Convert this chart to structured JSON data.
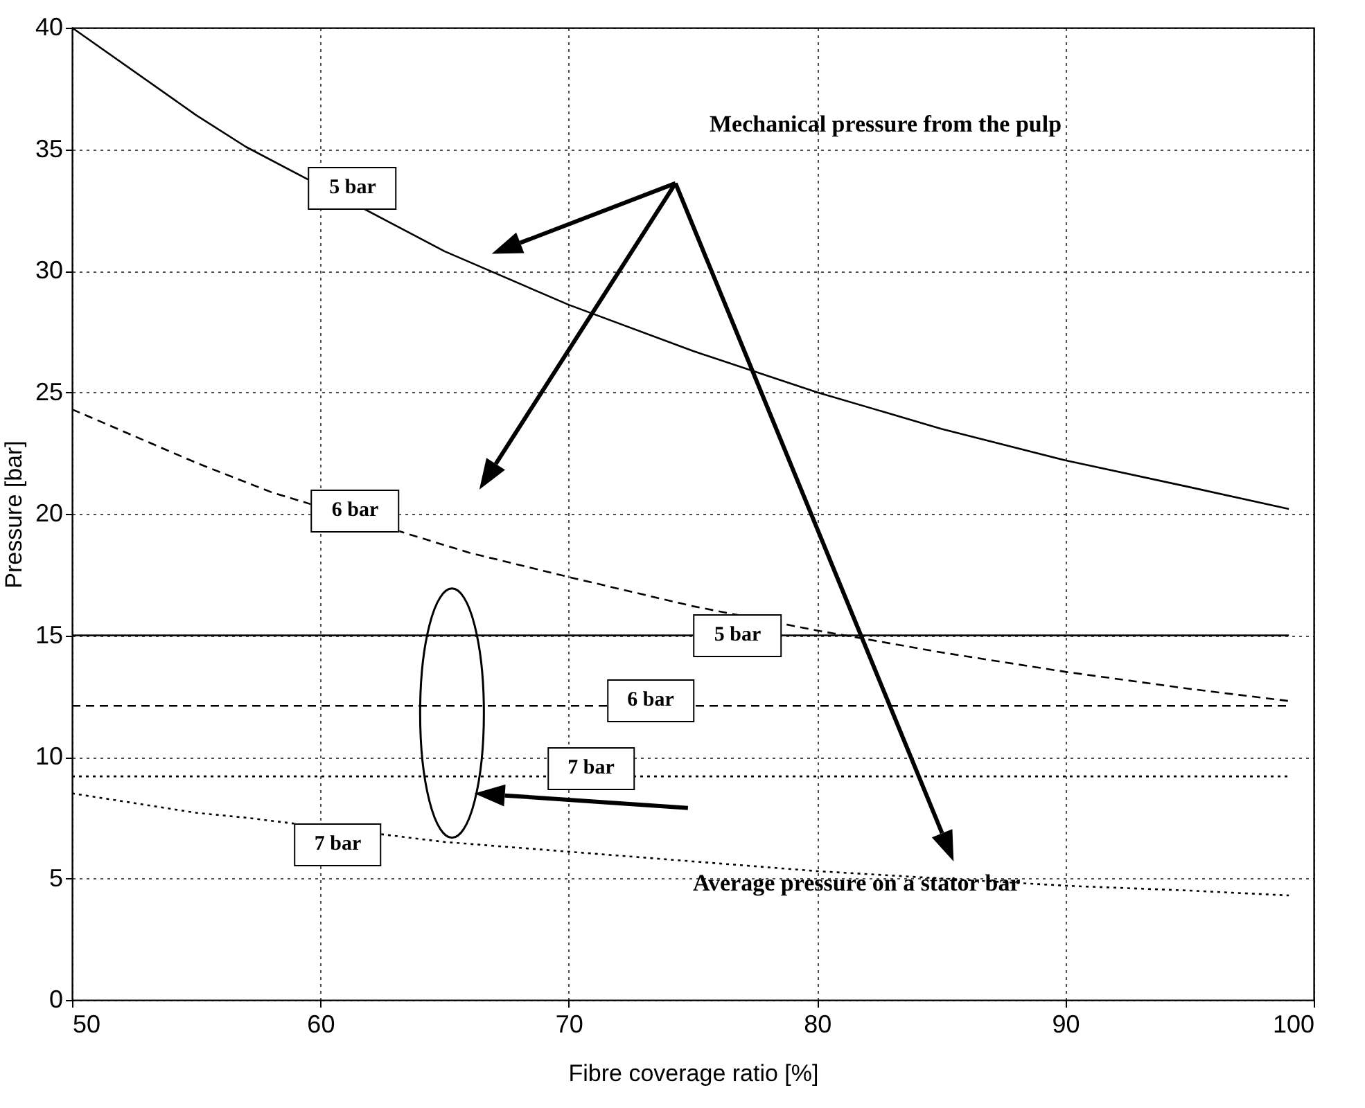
{
  "chart_data": {
    "type": "line",
    "xlabel": "Fibre coverage ratio [%]",
    "ylabel": "Pressure [bar]",
    "xlim": [
      50,
      100
    ],
    "ylim": [
      0,
      40
    ],
    "xticks": [
      50,
      60,
      70,
      80,
      90,
      100
    ],
    "yticks": [
      0,
      5,
      10,
      15,
      20,
      25,
      30,
      35,
      40
    ],
    "grid": true,
    "marker": "none",
    "annotations": [
      "Mechanical pressure from the pulp",
      "Average pressure on a stator bar"
    ],
    "series": [
      {
        "name": "5 bar",
        "color": "#000000",
        "line_style": "solid",
        "x": [
          50,
          55,
          57,
          65,
          70,
          75,
          80,
          85,
          90,
          95,
          99
        ],
        "values": [
          40,
          36.4,
          35.1,
          30.8,
          28.6,
          26.7,
          25,
          23.5,
          22.2,
          21.1,
          20.2
        ]
      },
      {
        "name": "6 bar",
        "color": "#000000",
        "line_style": "dashed",
        "x": [
          50,
          55,
          58,
          66,
          70,
          75,
          80,
          85,
          90,
          95,
          99
        ],
        "values": [
          24.3,
          22.1,
          20.9,
          18.4,
          17.4,
          16.2,
          15.2,
          14.3,
          13.5,
          12.8,
          12.3
        ]
      },
      {
        "name": "7 bar",
        "color": "#000000",
        "line_style": "dotted",
        "x": [
          50,
          55,
          57,
          65,
          70,
          75,
          80,
          85,
          90,
          95,
          99
        ],
        "values": [
          8.5,
          7.7,
          7.5,
          6.5,
          6.1,
          5.7,
          5.3,
          5,
          4.7,
          4.5,
          4.3
        ]
      },
      {
        "name": "5 bar",
        "color": "#000000",
        "line_style": "solid",
        "x": [
          50,
          99
        ],
        "values": [
          15,
          15
        ]
      },
      {
        "name": "6 bar",
        "color": "#000000",
        "line_style": "dashed",
        "x": [
          50,
          99
        ],
        "values": [
          12.1,
          12.1
        ]
      },
      {
        "name": "7 bar",
        "color": "#000000",
        "line_style": "dotted",
        "x": [
          50,
          99
        ],
        "values": [
          9.2,
          9.2
        ]
      }
    ]
  }
}
